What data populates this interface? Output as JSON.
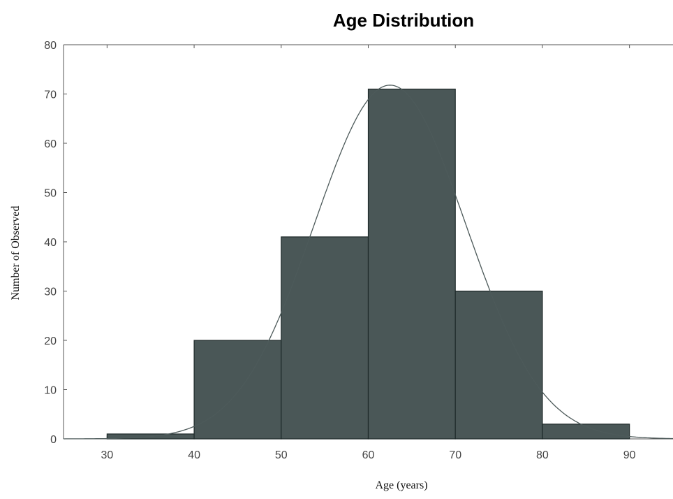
{
  "chart_data": {
    "type": "bar",
    "title": "Age Distribution",
    "xlabel": "Age (years)",
    "ylabel": "Number of Observed",
    "bins": [
      {
        "from": 30,
        "to": 40,
        "value": 1
      },
      {
        "from": 40,
        "to": 50,
        "value": 20
      },
      {
        "from": 50,
        "to": 60,
        "value": 41
      },
      {
        "from": 60,
        "to": 70,
        "value": 71
      },
      {
        "from": 70,
        "to": 80,
        "value": 30
      },
      {
        "from": 80,
        "to": 90,
        "value": 3
      }
    ],
    "xticks": [
      30,
      40,
      50,
      60,
      70,
      80,
      90
    ],
    "yticks": [
      0,
      10,
      20,
      30,
      40,
      50,
      60,
      70,
      80
    ],
    "xlim": [
      25,
      95
    ],
    "ylim": [
      0,
      80
    ],
    "fitted_curve": {
      "type": "normal",
      "peak_x": 62.5,
      "peak_y": 71.8
    },
    "grid": false,
    "legend": "none",
    "colors": {
      "bar_fill": "#4a5757",
      "bar_edge": "#1e2a2a",
      "curve": "#4d5a5a",
      "axis": "#555555"
    }
  }
}
